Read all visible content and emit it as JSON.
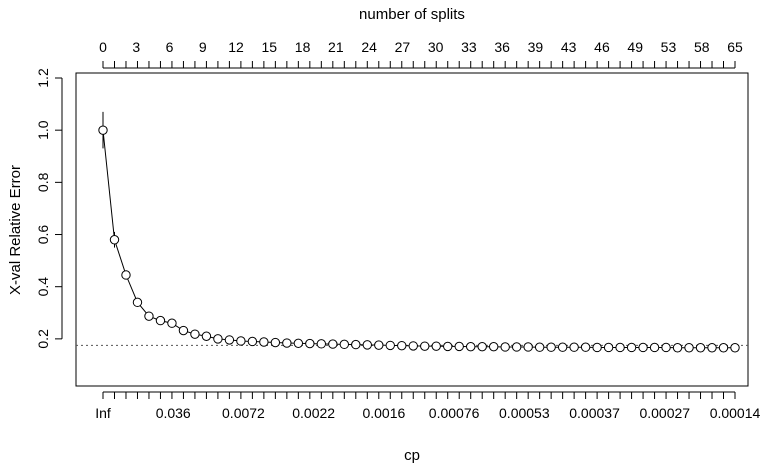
{
  "chart_data": {
    "type": "line",
    "title": "",
    "xlabel": "cp",
    "ylabel": "X-val Relative Error",
    "top_axis_label": "number of splits",
    "ylim": [
      0.05,
      1.2
    ],
    "y_ticks": [
      "0.2",
      "0.4",
      "0.6",
      "0.8",
      "1.0",
      "1.2"
    ],
    "top_tick_labels": [
      "0",
      "3",
      "6",
      "9",
      "12",
      "15",
      "18",
      "21",
      "24",
      "27",
      "30",
      "33",
      "36",
      "39",
      "43",
      "46",
      "49",
      "53",
      "58",
      "65"
    ],
    "bottom_tick_labels": [
      "Inf",
      "0.036",
      "0.0072",
      "0.0022",
      "0.0016",
      "0.00076",
      "0.00053",
      "0.00037",
      "0.00027",
      "0.00014"
    ],
    "reference_line": 0.175,
    "grid": false,
    "legend": "none",
    "series": [
      {
        "values": [
          1.0,
          0.58,
          0.445,
          0.34,
          0.287,
          0.27,
          0.26,
          0.232,
          0.218,
          0.21,
          0.2,
          0.196,
          0.192,
          0.19,
          0.188,
          0.186,
          0.184,
          0.183,
          0.182,
          0.181,
          0.18,
          0.179,
          0.178,
          0.177,
          0.176,
          0.175,
          0.174,
          0.173,
          0.172,
          0.172,
          0.171,
          0.171,
          0.17,
          0.17,
          0.17,
          0.169,
          0.169,
          0.169,
          0.168,
          0.168,
          0.168,
          0.168,
          0.168,
          0.167,
          0.167,
          0.167,
          0.167,
          0.167,
          0.167,
          0.167,
          0.166,
          0.166,
          0.166,
          0.166,
          0.166,
          0.166
        ],
        "error_high": [
          1.07,
          0.61,
          0.46,
          0.35,
          0.295,
          0.278,
          0.268,
          0.24,
          0.225,
          0.216,
          0.206,
          0.202,
          0.198,
          0.196,
          0.194,
          0.192,
          0.19,
          0.189,
          0.188,
          0.187,
          0.186,
          0.185,
          0.184,
          0.183,
          0.182,
          0.181,
          0.18,
          0.179,
          0.178,
          0.178,
          0.177,
          0.177,
          0.176,
          0.176,
          0.176,
          0.175,
          0.175,
          0.175,
          0.174,
          0.174,
          0.174,
          0.174,
          0.174,
          0.173,
          0.173,
          0.173,
          0.173,
          0.173,
          0.173,
          0.173,
          0.172,
          0.172,
          0.172,
          0.172,
          0.172,
          0.172
        ],
        "error_low": [
          0.93,
          0.55,
          0.43,
          0.33,
          0.279,
          0.262,
          0.252,
          0.224,
          0.211,
          0.204,
          0.194,
          0.19,
          0.186,
          0.184,
          0.182,
          0.18,
          0.178,
          0.177,
          0.176,
          0.175,
          0.174,
          0.173,
          0.172,
          0.171,
          0.17,
          0.169,
          0.168,
          0.167,
          0.166,
          0.166,
          0.165,
          0.165,
          0.164,
          0.164,
          0.164,
          0.163,
          0.163,
          0.163,
          0.162,
          0.162,
          0.162,
          0.162,
          0.162,
          0.161,
          0.161,
          0.161,
          0.161,
          0.161,
          0.161,
          0.161,
          0.16,
          0.16,
          0.16,
          0.16,
          0.16,
          0.16
        ]
      }
    ]
  }
}
